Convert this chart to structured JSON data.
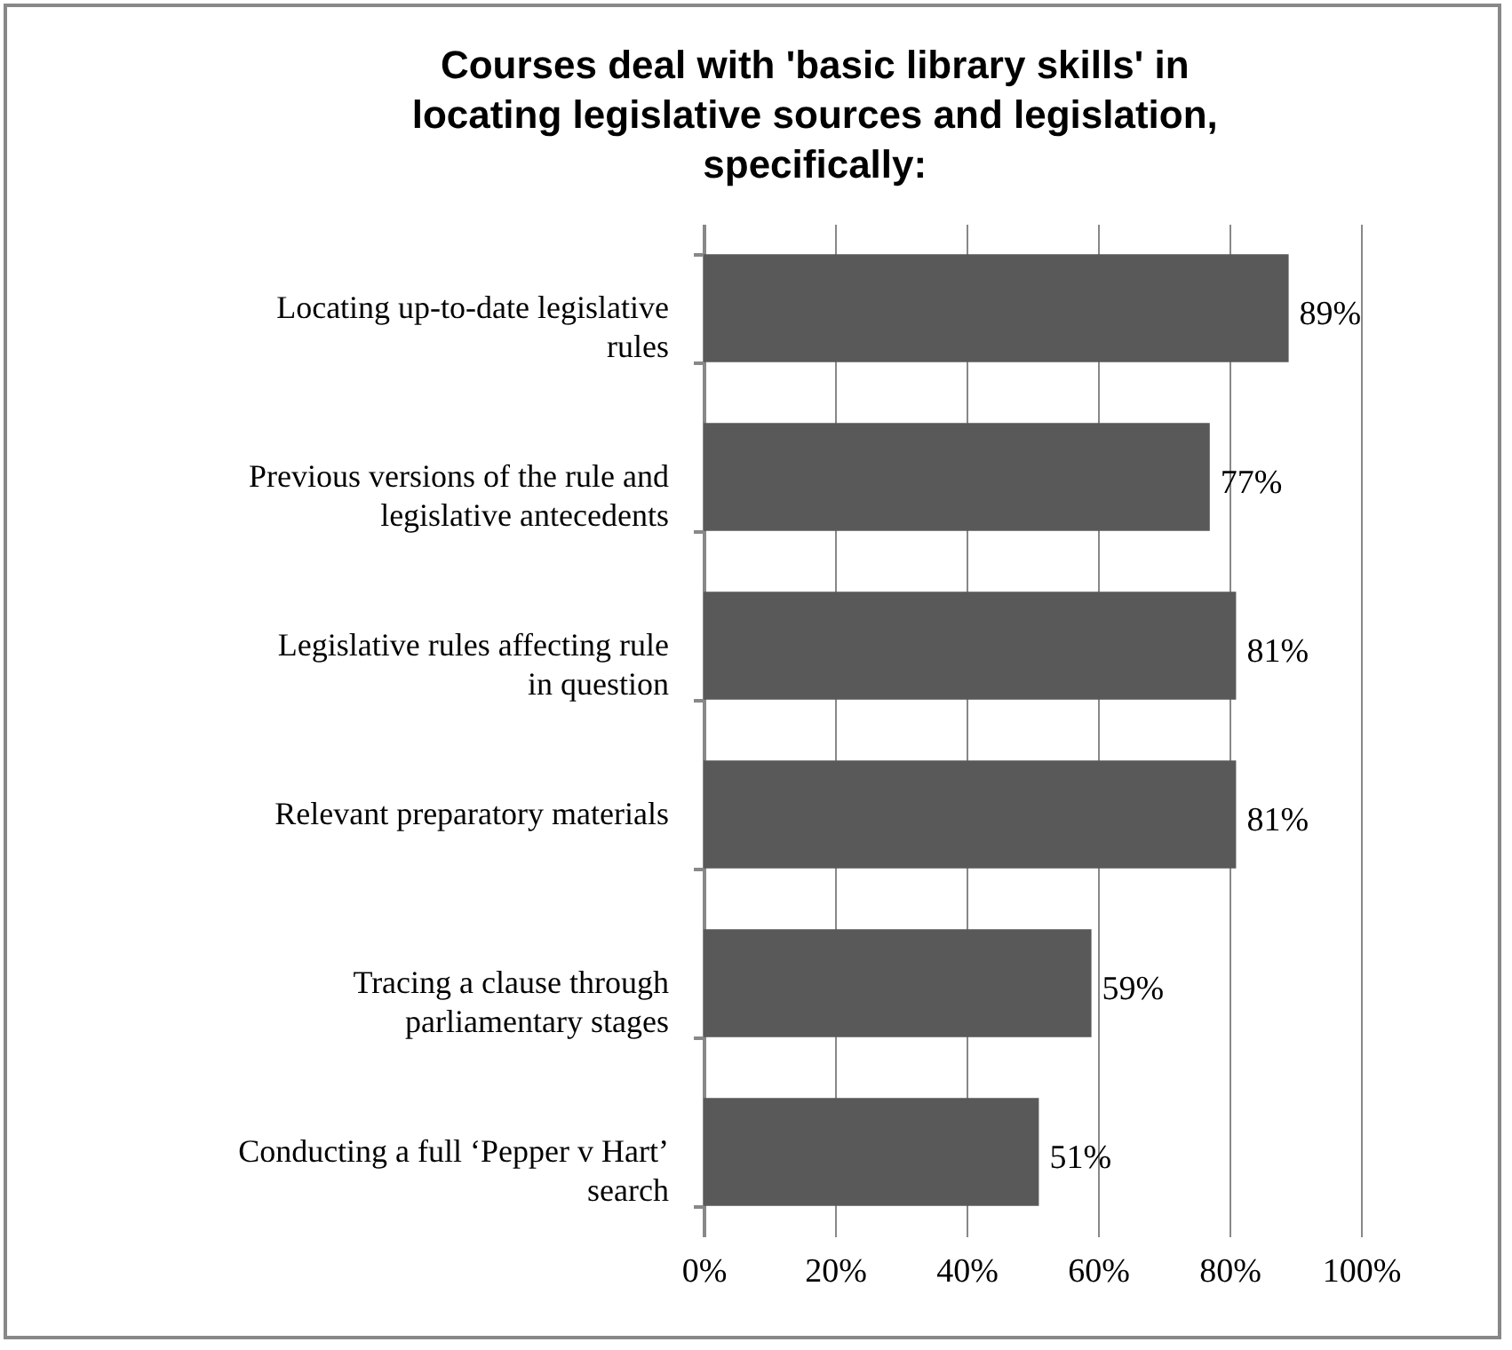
{
  "chart_data": {
    "type": "bar",
    "orientation": "horizontal",
    "title": "Courses deal with 'basic library skills' in locating legislative sources and legislation, specifically:",
    "categories": [
      "Locating up-to-date  legislative rules",
      "Previous versions of the rule and legislative antecedents",
      "Legislative rules affecting rule in question",
      "Relevant preparatory  materials",
      "Tracing a clause through parliamentary  stages",
      "Conducting a full ‘Pepper  v Hart’ search"
    ],
    "values": [
      89,
      77,
      81,
      81,
      59,
      51
    ],
    "value_labels": [
      "89%",
      "77%",
      "81%",
      "81%",
      "59%",
      "51%"
    ],
    "color": "#595959",
    "xlim": [
      0,
      100
    ],
    "xticks": [
      {
        "value": 0,
        "label": "0%"
      },
      {
        "value": 20,
        "label": "20%"
      },
      {
        "value": 40,
        "label": "40%"
      },
      {
        "value": 60,
        "label": "60%"
      },
      {
        "value": 80,
        "label": "80%"
      },
      {
        "value": 100,
        "label": "100%"
      }
    ],
    "grid": "x"
  }
}
